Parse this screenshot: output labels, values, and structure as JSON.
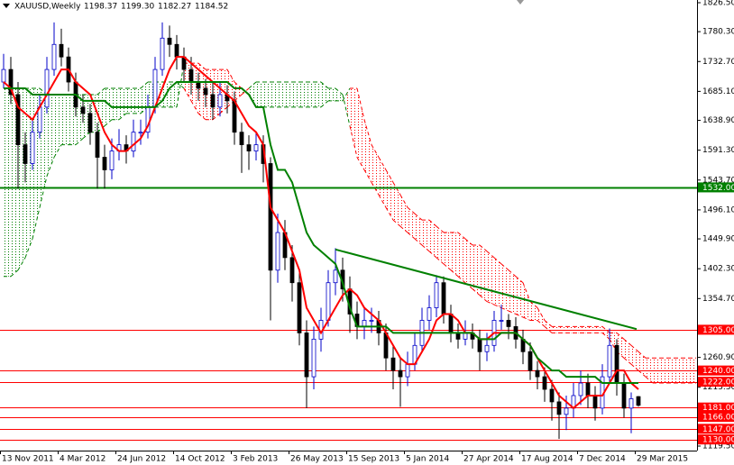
{
  "header": {
    "symbol": "XAUUSD,Weekly",
    "ohlc": [
      "1198.37",
      "1199.30",
      "1182.27",
      "1184.52"
    ]
  },
  "chart_data": {
    "type": "candlestick",
    "categories": [
      "13 Nov 2011",
      null,
      null,
      null,
      null,
      null,
      null,
      null,
      "4 Mar 2012",
      null,
      null,
      null,
      null,
      null,
      null,
      null,
      "24 Jun 2012",
      null,
      null,
      null,
      null,
      null,
      null,
      null,
      "14 Oct 2012",
      null,
      null,
      null,
      null,
      null,
      null,
      null,
      "3 Feb 2013",
      null,
      null,
      null,
      null,
      null,
      null,
      null,
      "26 May 2013",
      null,
      null,
      null,
      null,
      null,
      null,
      null,
      "15 Sep 2013",
      null,
      null,
      null,
      null,
      null,
      null,
      null,
      "5 Jan 2014",
      null,
      null,
      null,
      null,
      null,
      null,
      null,
      "27 Apr 2014",
      null,
      null,
      null,
      null,
      null,
      null,
      null,
      "17 Aug 2014",
      null,
      null,
      null,
      null,
      null,
      null,
      null,
      "7 Dec 2014",
      null,
      null,
      null,
      null,
      null,
      null,
      null,
      "29 Mar 2015",
      null,
      null,
      null,
      null,
      null,
      null,
      null,
      null
    ],
    "open": [
      1700,
      1720,
      1680,
      1600,
      1570,
      1620,
      1660,
      1720,
      1760,
      1740,
      1700,
      1660,
      1650,
      1620,
      1580,
      1560,
      1590,
      1600,
      1590,
      1620,
      1620,
      1660,
      1720,
      1770,
      1760,
      1740,
      1720,
      1700,
      1690,
      1680,
      1660,
      1680,
      1670,
      1620,
      1600,
      1590,
      1600,
      1570,
      1400,
      1460,
      1420,
      1380,
      1300,
      1230,
      1290,
      1320,
      1380,
      1400,
      1370,
      1330,
      1310,
      1320,
      1320,
      1300,
      1260,
      1240,
      1230,
      1250,
      1280,
      1320,
      1340,
      1380,
      1330,
      1300,
      1290,
      1300,
      1290,
      1270,
      1280,
      1320,
      1320,
      1310,
      1290,
      1270,
      1240,
      1230,
      1210,
      1190,
      1170,
      1180,
      1200,
      1220,
      1200,
      1180,
      1230,
      1280,
      1220,
      1180,
      1198.37,
      null,
      null,
      null,
      null,
      null,
      null,
      null,
      null
    ],
    "high": [
      1745,
      1740,
      1700,
      1620,
      1640,
      1680,
      1740,
      1795,
      1785,
      1755,
      1715,
      1680,
      1665,
      1635,
      1600,
      1610,
      1625,
      1615,
      1640,
      1640,
      1680,
      1740,
      1795,
      1790,
      1775,
      1755,
      1740,
      1715,
      1705,
      1700,
      1700,
      1695,
      1685,
      1635,
      1615,
      1620,
      1615,
      1580,
      1490,
      1480,
      1440,
      1400,
      1320,
      1310,
      1340,
      1400,
      1435,
      1420,
      1390,
      1350,
      1340,
      1340,
      1335,
      1315,
      1280,
      1260,
      1270,
      1300,
      1340,
      1360,
      1392,
      1390,
      1345,
      1315,
      1320,
      1315,
      1305,
      1300,
      1335,
      1345,
      1330,
      1325,
      1305,
      1285,
      1255,
      1245,
      1225,
      1205,
      1200,
      1220,
      1240,
      1235,
      1215,
      1250,
      1307,
      1290,
      1235,
      1205,
      1199.3,
      null,
      null,
      null,
      null,
      null,
      null,
      null,
      null
    ],
    "low": [
      1690,
      1665,
      1530,
      1540,
      1560,
      1610,
      1650,
      1710,
      1725,
      1685,
      1645,
      1635,
      1600,
      1530,
      1530,
      1545,
      1575,
      1570,
      1580,
      1600,
      1610,
      1650,
      1710,
      1740,
      1720,
      1700,
      1680,
      1670,
      1660,
      1640,
      1645,
      1650,
      1600,
      1555,
      1560,
      1575,
      1540,
      1320,
      1380,
      1400,
      1350,
      1280,
      1180,
      1210,
      1270,
      1310,
      1360,
      1350,
      1300,
      1290,
      1290,
      1300,
      1280,
      1240,
      1210,
      1182,
      1215,
      1240,
      1270,
      1305,
      1325,
      1315,
      1285,
      1275,
      1280,
      1275,
      1240,
      1255,
      1270,
      1305,
      1290,
      1275,
      1250,
      1225,
      1210,
      1190,
      1160,
      1131,
      1145,
      1165,
      1185,
      1180,
      1160,
      1170,
      1220,
      1200,
      1165,
      1140,
      1182.27,
      null,
      null,
      null,
      null,
      null,
      null,
      null,
      null
    ],
    "close": [
      1720,
      1680,
      1600,
      1570,
      1620,
      1660,
      1720,
      1760,
      1740,
      1700,
      1660,
      1650,
      1620,
      1580,
      1560,
      1590,
      1600,
      1590,
      1620,
      1620,
      1660,
      1720,
      1770,
      1760,
      1740,
      1720,
      1700,
      1690,
      1680,
      1660,
      1680,
      1670,
      1620,
      1600,
      1590,
      1600,
      1570,
      1400,
      1460,
      1420,
      1380,
      1300,
      1230,
      1290,
      1320,
      1380,
      1400,
      1370,
      1330,
      1310,
      1320,
      1320,
      1300,
      1260,
      1240,
      1230,
      1250,
      1280,
      1320,
      1340,
      1380,
      1330,
      1300,
      1290,
      1300,
      1290,
      1270,
      1280,
      1320,
      1320,
      1310,
      1290,
      1270,
      1240,
      1230,
      1210,
      1190,
      1170,
      1180,
      1200,
      1220,
      1200,
      1180,
      1230,
      1280,
      1220,
      1180,
      1195,
      1184.52,
      null,
      null,
      null,
      null,
      null,
      null,
      null,
      null
    ],
    "up_color": "#0000c8",
    "down_color": "#000000",
    "lines": [
      {
        "color": "#ff0000",
        "values": [
          1700,
          1690,
          1660,
          1650,
          1640,
          1660,
          1680,
          1700,
          1720,
          1720,
          1700,
          1690,
          1680,
          1650,
          1620,
          1600,
          1590,
          1590,
          1600,
          1610,
          1630,
          1660,
          1690,
          1720,
          1740,
          1740,
          1730,
          1720,
          1710,
          1700,
          1690,
          1680,
          1670,
          1650,
          1630,
          1620,
          1600,
          1500,
          1480,
          1460,
          1430,
          1400,
          1340,
          1320,
          1300,
          1320,
          1340,
          1360,
          1370,
          1360,
          1340,
          1330,
          1320,
          1300,
          1280,
          1260,
          1250,
          1250,
          1270,
          1290,
          1320,
          1330,
          1330,
          1320,
          1300,
          1300,
          1290,
          1290,
          1300,
          1300,
          1300,
          1300,
          1290,
          1280,
          1260,
          1240,
          1220,
          1200,
          1190,
          1180,
          1190,
          1200,
          1200,
          1200,
          1220,
          1240,
          1240,
          1220,
          1210,
          null,
          null,
          null,
          null,
          null,
          null,
          null,
          null
        ]
      },
      {
        "color": "#008000",
        "values": [
          1690,
          1690,
          1690,
          1690,
          1680,
          1680,
          1680,
          1680,
          1680,
          1680,
          1680,
          1670,
          1670,
          1670,
          1670,
          1660,
          1660,
          1660,
          1660,
          1660,
          1660,
          1660,
          1670,
          1690,
          1700,
          1700,
          1700,
          1700,
          1700,
          1700,
          1700,
          1700,
          1690,
          1690,
          1680,
          1660,
          1660,
          1600,
          1560,
          1560,
          1540,
          1500,
          1460,
          1440,
          1430,
          1420,
          1410,
          1380,
          1340,
          1310,
          1310,
          1310,
          1310,
          1310,
          1300,
          1300,
          1300,
          1300,
          1300,
          1300,
          1300,
          1300,
          1300,
          1300,
          1300,
          1300,
          1290,
          1290,
          1290,
          1300,
          1300,
          1300,
          1290,
          1280,
          1260,
          1250,
          1240,
          1240,
          1230,
          1230,
          1230,
          1230,
          1230,
          1220,
          1220,
          1220,
          1220,
          1220,
          1220,
          null,
          null,
          null,
          null,
          null,
          null,
          null,
          null
        ]
      }
    ],
    "cloud": {
      "up_color": "#008000",
      "down_color": "#ff0000",
      "span_a": [
        1690,
        1690,
        1690,
        1690,
        1690,
        1690,
        1680,
        1680,
        1680,
        1680,
        1680,
        1680,
        1680,
        1680,
        1690,
        1690,
        1690,
        1690,
        1690,
        1690,
        1700,
        1700,
        1700,
        1700,
        1700,
        1690,
        1670,
        1650,
        1640,
        1640,
        1650,
        1660,
        1670,
        1680,
        1690,
        1700,
        1700,
        1700,
        1700,
        1700,
        1700,
        1700,
        1700,
        1700,
        1700,
        1690,
        1690,
        1680,
        1630,
        1580,
        1560,
        1540,
        1520,
        1500,
        1480,
        1470,
        1460,
        1450,
        1440,
        1430,
        1420,
        1410,
        1400,
        1390,
        1380,
        1370,
        1360,
        1350,
        1345,
        1340,
        1335,
        1330,
        1325,
        1320,
        1320,
        1310,
        1300,
        1300,
        1300,
        1300,
        1300,
        1300,
        1300,
        1300,
        1290,
        1270,
        1260,
        1250,
        1240,
        1230,
        1220,
        1220,
        1220,
        1220,
        1220,
        1220,
        1220
      ],
      "span_b": [
        1390,
        1390,
        1400,
        1420,
        1450,
        1500,
        1550,
        1580,
        1600,
        1600,
        1600,
        1610,
        1620,
        1620,
        1630,
        1640,
        1640,
        1650,
        1650,
        1650,
        1660,
        1660,
        1660,
        1660,
        1660,
        1730,
        1730,
        1730,
        1720,
        1720,
        1720,
        1720,
        1700,
        1690,
        1680,
        1660,
        1660,
        1660,
        1660,
        1660,
        1660,
        1660,
        1660,
        1660,
        1660,
        1670,
        1670,
        1670,
        1690,
        1690,
        1640,
        1600,
        1580,
        1560,
        1540,
        1520,
        1500,
        1490,
        1480,
        1480,
        1470,
        1460,
        1460,
        1460,
        1450,
        1440,
        1440,
        1430,
        1420,
        1410,
        1400,
        1390,
        1380,
        1350,
        1340,
        1320,
        1310,
        1310,
        1310,
        1310,
        1310,
        1310,
        1310,
        1310,
        1300,
        1300,
        1290,
        1280,
        1270,
        1260,
        1260,
        1260,
        1260,
        1260,
        1260,
        1260,
        1260
      ]
    },
    "trendline": {
      "color": "#008000",
      "values": [
        1433,
        1306
      ]
    },
    "levels": [
      {
        "value": 1532,
        "label": "1532.00",
        "color": "#008000"
      },
      {
        "value": 1305,
        "label": "1305.00",
        "color": "#ff0000"
      },
      {
        "value": 1240,
        "label": "1240.00",
        "color": "#ff0000"
      },
      {
        "value": 1222,
        "label": "1222.00",
        "color": "#ff0000"
      },
      {
        "value": 1181,
        "label": "1181.00",
        "color": "#ff0000"
      },
      {
        "value": 1166,
        "label": "1166.00",
        "color": "#ff0000"
      },
      {
        "value": 1147,
        "label": "1147.00",
        "color": "#ff0000"
      },
      {
        "value": 1130,
        "label": "1130.00",
        "color": "#ff0000"
      }
    ],
    "ylim": [
      1112.3,
      1830.8
    ],
    "yticks": [
      {
        "value": 1826.5,
        "label": "1826.50"
      },
      {
        "value": 1780.3,
        "label": "1780.30"
      },
      {
        "value": 1732.7,
        "label": "1732.70"
      },
      {
        "value": 1685.1,
        "label": "1685.10"
      },
      {
        "value": 1638.9,
        "label": "1638.90"
      },
      {
        "value": 1591.3,
        "label": "1591.30"
      },
      {
        "value": 1543.7,
        "label": "1543.70"
      },
      {
        "value": 1496.1,
        "label": "1496.10"
      },
      {
        "value": 1449.9,
        "label": "1449.90"
      },
      {
        "value": 1402.3,
        "label": "1402.30"
      },
      {
        "value": 1354.7,
        "label": "1354.70"
      },
      {
        "value": 1260.9,
        "label": "1260.90"
      },
      {
        "value": 1213.3,
        "label": "1213.30"
      },
      {
        "value": 1119.5,
        "label": "1119.50"
      }
    ]
  }
}
